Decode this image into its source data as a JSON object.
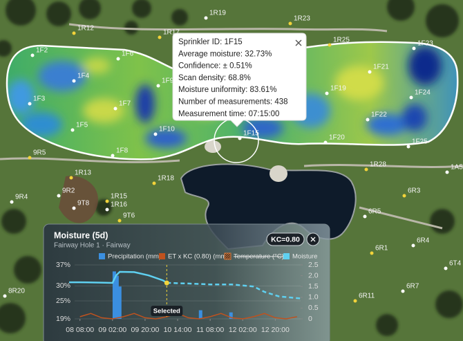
{
  "map": {
    "sprinklers": [
      "1F2",
      "1F3",
      "1F4",
      "1F5",
      "1F6",
      "1F7",
      "1F8",
      "1F9",
      "1F10",
      "1F15",
      "1F19",
      "1F20",
      "1F21",
      "1F22",
      "1F23",
      "1F24",
      "1F25",
      "1R12",
      "1R17",
      "1R19",
      "1R23",
      "1R25",
      "1R28",
      "1R13",
      "1R15",
      "1R16",
      "1R18",
      "9R5",
      "9R2",
      "9T8",
      "9T6",
      "9R4",
      "1A5",
      "6R3",
      "6R5",
      "6R4",
      "6R1",
      "6T4",
      "6R7",
      "6R11",
      "8R20"
    ]
  },
  "popup": {
    "lines": [
      "Sprinkler ID: 1F15",
      "Average moisture: 32.73%",
      "Confidence: ± 0.51%",
      "Scan density: 68.8%",
      "Moisture uniformity: 83.61%",
      "Number of measurements: 438",
      "Measurement time: 07:15:00"
    ]
  },
  "chart_data": {
    "type": "line",
    "title": "Moisture (5d)",
    "subtitle": "Fairway Hole 1 · Fairway",
    "badge": "KC=0.80",
    "xlim": [
      -6,
      122
    ],
    "xticks": [
      {
        "value": 0,
        "label": "08 08:00"
      },
      {
        "value": 18,
        "label": "09 02:00"
      },
      {
        "value": 36,
        "label": "09 20:00"
      },
      {
        "value": 54,
        "label": "10 14:00"
      },
      {
        "value": 72,
        "label": "11 08:00"
      },
      {
        "value": 90,
        "label": "12 02:00"
      },
      {
        "value": 108,
        "label": "12 20:00"
      }
    ],
    "ylim": [
      19,
      37
    ],
    "yticks": [
      {
        "value": 37,
        "label": "37%"
      },
      {
        "value": 30,
        "label": "30%"
      },
      {
        "value": 25,
        "label": "25%"
      },
      {
        "value": 19,
        "label": "19%"
      }
    ],
    "y2lim": [
      0,
      2.5
    ],
    "y2ticks": [
      {
        "value": 2.5,
        "label": "2.5"
      },
      {
        "value": 2,
        "label": "2.0"
      },
      {
        "value": 1.5,
        "label": "1.5"
      },
      {
        "value": 1,
        "label": "1.0"
      },
      {
        "value": 0.5,
        "label": "0.5"
      },
      0
    ],
    "grid": true,
    "series": [
      {
        "name": "Precipitation (mm)",
        "type": "bar",
        "axis": "y2",
        "color": "#3b8fe0",
        "x": [
          19,
          20.5,
          22,
          66.7,
          83.5
        ],
        "values": [
          2.2,
          2.0,
          1.5,
          0.4,
          0.3
        ]
      },
      {
        "name": "ET x KC (0.80) (mm)",
        "axis": "y2",
        "color": "#c0521e",
        "x": [
          0,
          6,
          12,
          18,
          24,
          30,
          36,
          42,
          48,
          54,
          60,
          66,
          72,
          78,
          84,
          90,
          96,
          102,
          108,
          114,
          120
        ],
        "values": [
          0.1,
          0.25,
          0.05,
          0,
          0.1,
          0.25,
          0.05,
          0,
          0.1,
          0.25,
          0.05,
          0,
          0.1,
          0.25,
          0.05,
          0,
          0.1,
          0.25,
          0.05,
          0,
          0.1
        ]
      },
      {
        "name": "Temperature (°C)",
        "color": "#d9793a",
        "hidden": true
      },
      {
        "name": "Moisture",
        "color": "#5fd0f0",
        "x": [
          -6,
          0,
          12,
          18,
          20,
          22,
          30,
          38,
          46,
          48
        ],
        "values": [
          31.2,
          31.2,
          31.1,
          31,
          33.5,
          34.7,
          34.6,
          33.5,
          31.8,
          31
        ]
      },
      {
        "color": "#5fd0f0",
        "dashed": true,
        "x": [
          48,
          60,
          72,
          84,
          96,
          102,
          110,
          122
        ],
        "values": [
          31,
          30.8,
          30.5,
          30.5,
          29.8,
          28,
          26.5,
          25.8
        ]
      }
    ],
    "selected_x": 48,
    "selected_label": "Selected"
  }
}
